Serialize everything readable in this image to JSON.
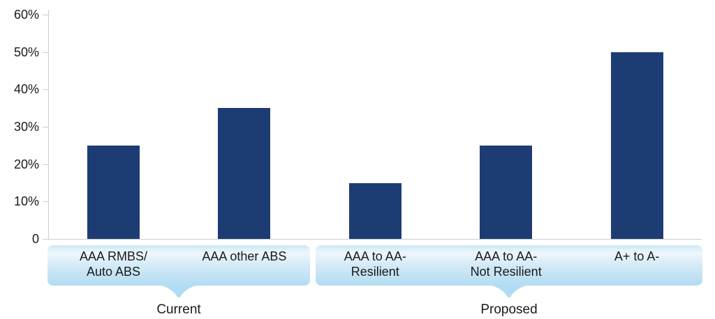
{
  "chart_data": {
    "type": "bar",
    "title": "",
    "xlabel": "",
    "ylabel": "",
    "grid": false,
    "legend": null,
    "categories": [
      "AAA RMBS/\nAuto ABS",
      "AAA other ABS",
      "AAA to AA-\nResilient",
      "AAA to AA-\nNot Resilient",
      "A+ to A-"
    ],
    "values": [
      25,
      35,
      15,
      25,
      50
    ],
    "groups": [
      {
        "label": "Current",
        "category_indexes": [
          0,
          1
        ]
      },
      {
        "label": "Proposed",
        "category_indexes": [
          2,
          3,
          4
        ]
      }
    ],
    "yticks": [
      "60%",
      "50%",
      "40%",
      "30%",
      "20%",
      "10%",
      "0"
    ],
    "ytick_values": [
      60,
      50,
      40,
      30,
      20,
      10,
      0
    ],
    "ylim": [
      0,
      60
    ],
    "colors": {
      "bar": "#1e3c74",
      "band_top_edge": "#d0e8f6",
      "band_highlight": "#edf6fc",
      "band_bottom": "#b2dcf2",
      "axis": "#c9ccd0",
      "text": "#1a1a1a"
    }
  }
}
